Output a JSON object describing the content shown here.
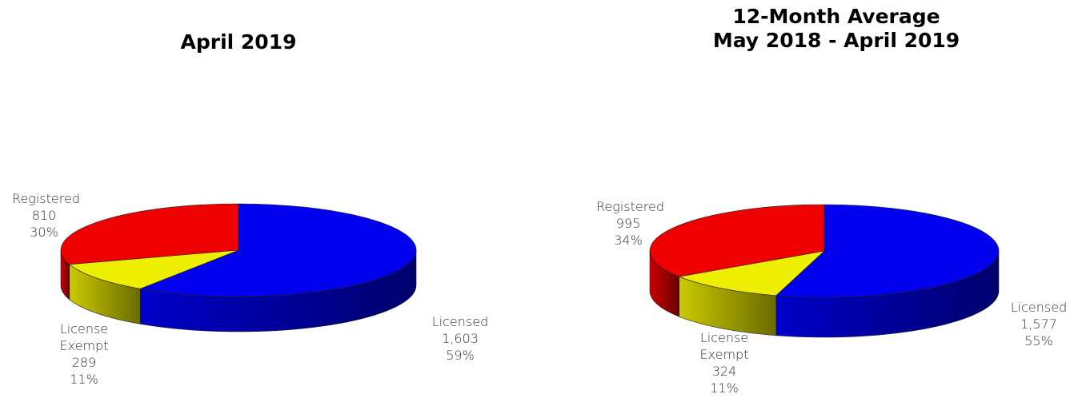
{
  "chart_data": [
    {
      "type": "pie",
      "title": "April 2019",
      "categories": [
        "Licensed",
        "License Exempt",
        "Registered"
      ],
      "values": [
        1603,
        289,
        810
      ],
      "value_labels": [
        "1,603",
        "289",
        "810"
      ],
      "percent_labels": [
        "59%",
        "11%",
        "30%"
      ],
      "colors": [
        "#0000ee",
        "#eeee00",
        "#ee0000"
      ]
    },
    {
      "type": "pie",
      "title": "12-Month Average",
      "subtitle": "May 2018 - April 2019",
      "categories": [
        "Licensed",
        "License Exempt",
        "Registered"
      ],
      "values": [
        1577,
        324,
        995
      ],
      "value_labels": [
        "1,577",
        "324",
        "995"
      ],
      "percent_labels": [
        "55%",
        "11%",
        "34%"
      ],
      "colors": [
        "#0000ee",
        "#eeee00",
        "#ee0000"
      ]
    }
  ]
}
